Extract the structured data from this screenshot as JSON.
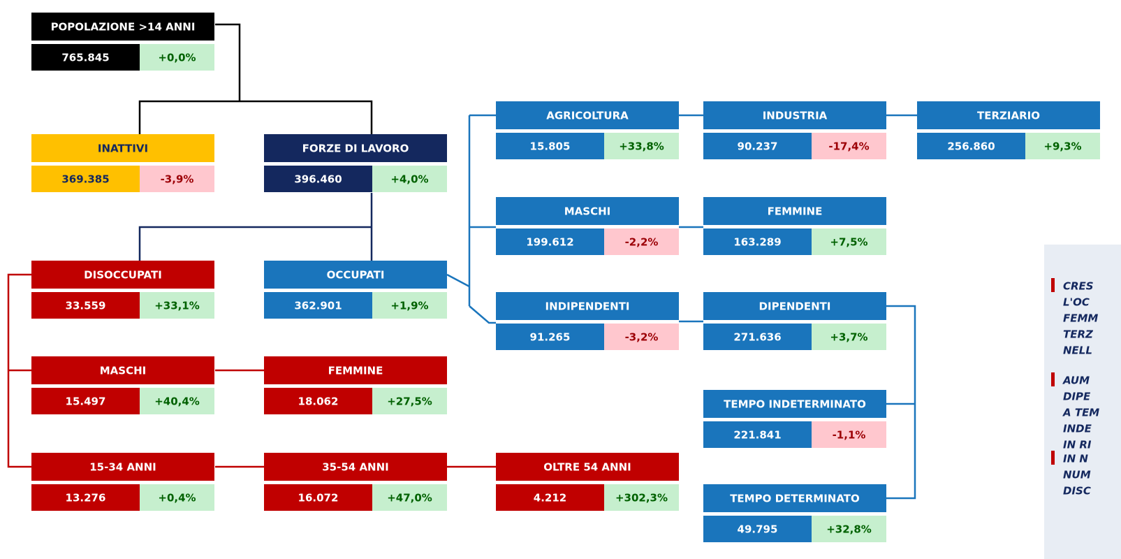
{
  "nodes": [
    {
      "label": "POPOLAZIONE >14 ANNI",
      "value": "765.845",
      "change": "+0,0%",
      "color": "black"
    },
    {
      "label": "INATTIVI",
      "value": "369.385",
      "change": "-3,9%",
      "color": "yellow"
    },
    {
      "label": "FORZE DI LAVORO",
      "value": "396.460",
      "change": "+4,0%",
      "color": "navy"
    },
    {
      "label": "DISOCCUPATI",
      "value": "33.559",
      "change": "+33,1%",
      "color": "red"
    },
    {
      "label": "OCCUPATI",
      "value": "362.901",
      "change": "+1,9%",
      "color": "blue"
    },
    {
      "label": "MASCHI",
      "value": "15.497",
      "change": "+40,4%",
      "color": "red"
    },
    {
      "label": "FEMMINE",
      "value": "18.062",
      "change": "+27,5%",
      "color": "red"
    },
    {
      "label": "15-34 ANNI",
      "value": "13.276",
      "change": "+0,4%",
      "color": "red"
    },
    {
      "label": "35-54 ANNI",
      "value": "16.072",
      "change": "+47,0%",
      "color": "red"
    },
    {
      "label": "OLTRE 54 ANNI",
      "value": "4.212",
      "change": "+302,3%",
      "color": "red"
    },
    {
      "label": "AGRICOLTURA",
      "value": "15.805",
      "change": "+33,8%",
      "color": "blue"
    },
    {
      "label": "INDUSTRIA",
      "value": "90.237",
      "change": "-17,4%",
      "color": "blue"
    },
    {
      "label": "TERZIARIO",
      "value": "256.860",
      "change": "+9,3%",
      "color": "blue"
    },
    {
      "label": "MASCHI",
      "value": "199.612",
      "change": "-2,2%",
      "color": "blue"
    },
    {
      "label": "FEMMINE",
      "value": "163.289",
      "change": "+7,5%",
      "color": "blue"
    },
    {
      "label": "INDIPENDENTI",
      "value": "91.265",
      "change": "-3,2%",
      "color": "blue"
    },
    {
      "label": "DIPENDENTI",
      "value": "271.636",
      "change": "+3,7%",
      "color": "blue"
    },
    {
      "label": "TEMPO INDETERMINATO",
      "value": "221.841",
      "change": "-1,1%",
      "color": "blue"
    },
    {
      "label": "TEMPO DETERMINATO",
      "value": "49.795",
      "change": "+32,8%",
      "color": "blue"
    }
  ],
  "notes": [
    [
      "CRES",
      "L'OC",
      "FEMM",
      "TERZ",
      "NELL"
    ],
    [
      "AUM",
      "DIPE",
      "A TEM",
      "INDE",
      "IN RI"
    ],
    [
      "IN N",
      "NUM",
      "DISC"
    ]
  ]
}
